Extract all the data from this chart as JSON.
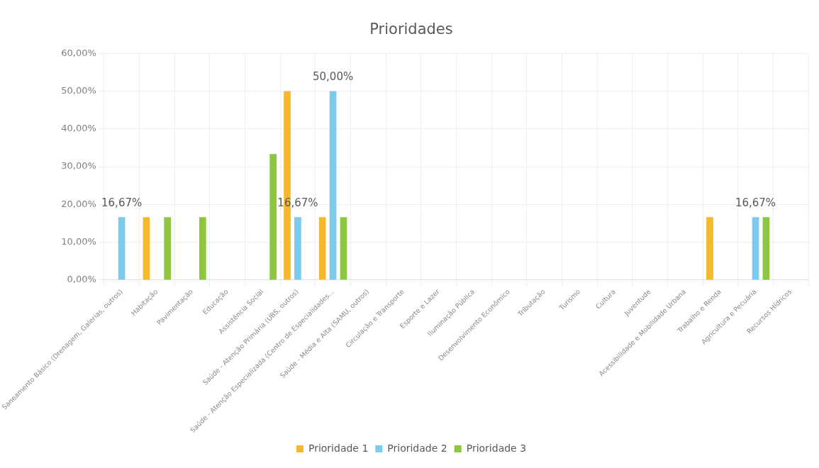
{
  "chart_data": {
    "type": "bar",
    "title": "Prioridades",
    "categories": [
      "Saneamento Básico (Drenagem, Galerias, outros)",
      "Habitação",
      "Pavimentação",
      "Educação",
      "Assistência Social",
      "Saúde - Atenção Primária (UBS, outros)",
      "Saúde - Atenção Especializada (Centro de Especialidades...",
      "Saúde - Média e Alta (SAMU, outros)",
      "Circulação e Transporte",
      "Esporte e Lazer",
      "Iluminação Pública",
      "Desenvolvimento Econômico",
      "Tributação",
      "Turismo",
      "Cultura",
      "Juventude",
      "Acessibilidade e Mobilidade Urbana",
      "Trabalho e Renda",
      "Agricultura e Pecuária",
      "Recursos Hídricos"
    ],
    "series": [
      {
        "name": "Prioridade 1",
        "color": "#f5b82e",
        "values": [
          0,
          16.67,
          0,
          0,
          0,
          50,
          16.67,
          0,
          0,
          0,
          0,
          0,
          0,
          0,
          0,
          0,
          0,
          16.67,
          0,
          0
        ]
      },
      {
        "name": "Prioridade 2",
        "color": "#7ccbee",
        "values": [
          16.67,
          0,
          0,
          0,
          0,
          16.67,
          50,
          0,
          0,
          0,
          0,
          0,
          0,
          0,
          0,
          0,
          0,
          0,
          16.67,
          0
        ],
        "value_labels": [
          "16,67%",
          null,
          null,
          null,
          null,
          "16,67%",
          "50,00%",
          null,
          null,
          null,
          null,
          null,
          null,
          null,
          null,
          null,
          null,
          null,
          "16,67%",
          null
        ]
      },
      {
        "name": "Prioridade 3",
        "color": "#8dc63f",
        "values": [
          0,
          16.67,
          16.67,
          0,
          33.33,
          0,
          16.67,
          0,
          0,
          0,
          0,
          0,
          0,
          0,
          0,
          0,
          0,
          0,
          16.67,
          0
        ]
      }
    ],
    "ylim": [
      0,
      60
    ],
    "yticks": [
      {
        "value": 0,
        "label": "0,00%"
      },
      {
        "value": 10,
        "label": "10,00%"
      },
      {
        "value": 20,
        "label": "20,00%"
      },
      {
        "value": 30,
        "label": "30,00%"
      },
      {
        "value": 40,
        "label": "40,00%"
      },
      {
        "value": 50,
        "label": "50,00%"
      },
      {
        "value": 60,
        "label": "60,00%"
      }
    ],
    "grid": true,
    "legend": "bottom"
  }
}
